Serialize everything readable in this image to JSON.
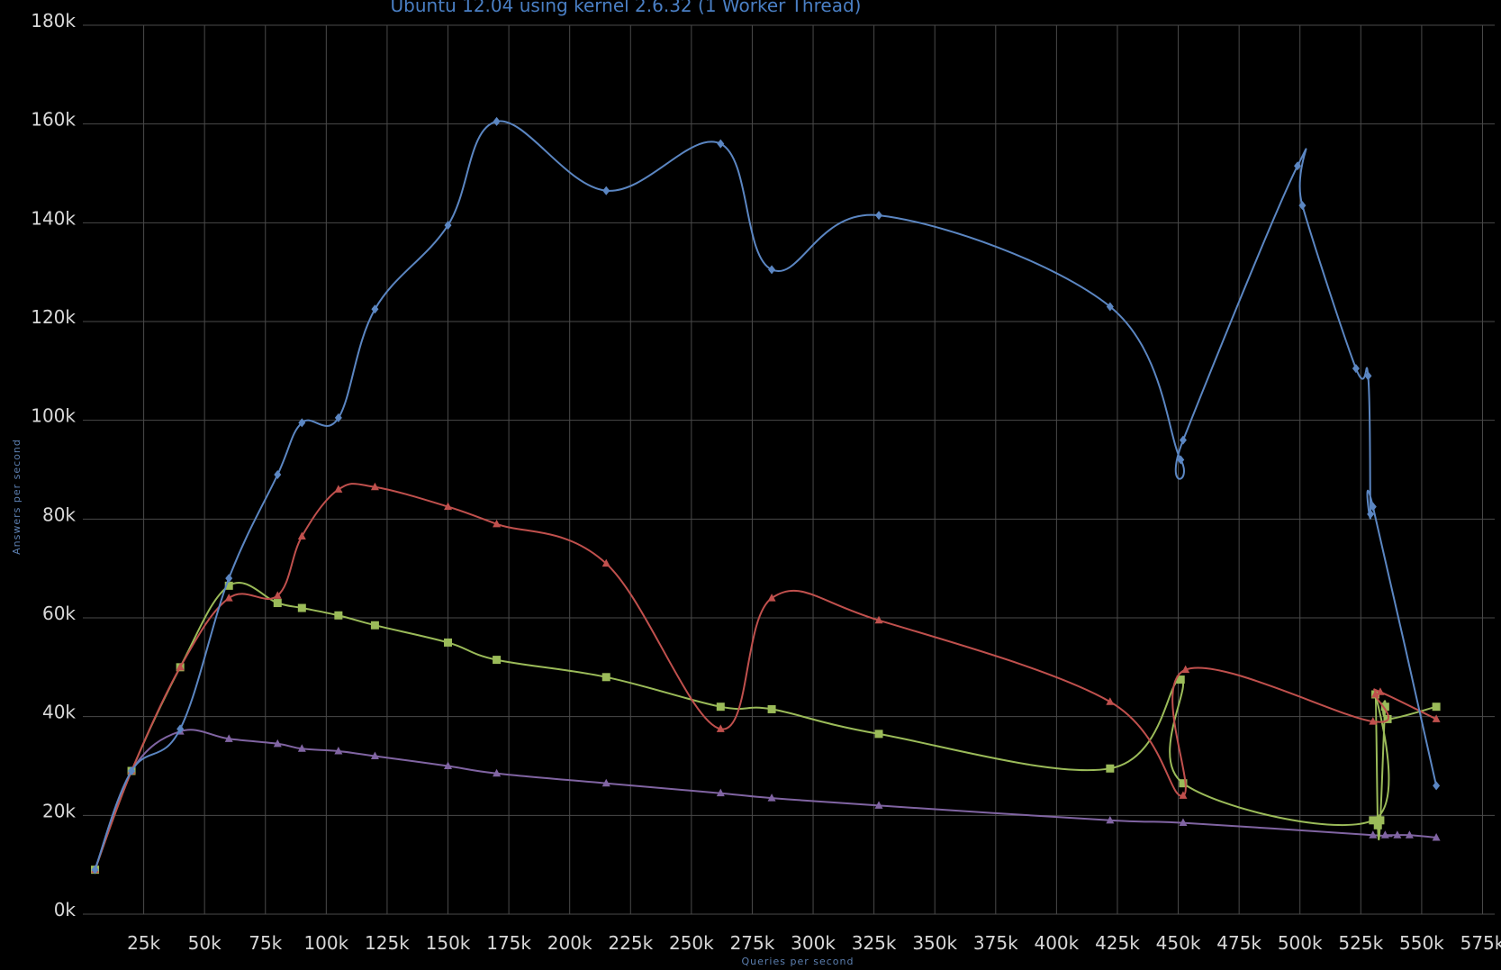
{
  "chart_data": {
    "type": "line",
    "title": "Ubuntu 12.04 using kernel 2.6.32 (1 Worker Thread)",
    "xlabel": "Queries per second",
    "ylabel": "Answers per second",
    "xlim": [
      0,
      580000
    ],
    "ylim": [
      0,
      180000
    ],
    "grid": true,
    "x_ticks": [
      25000,
      50000,
      75000,
      100000,
      125000,
      150000,
      175000,
      200000,
      225000,
      250000,
      275000,
      300000,
      325000,
      350000,
      375000,
      400000,
      425000,
      450000,
      475000,
      500000,
      525000,
      550000,
      575000
    ],
    "x_tick_labels": [
      "25k",
      "50k",
      "75k",
      "100k",
      "125k",
      "150k",
      "175k",
      "200k",
      "225k",
      "250k",
      "275k",
      "300k",
      "325k",
      "350k",
      "375k",
      "400k",
      "425k",
      "450k",
      "475k",
      "500k",
      "525k",
      "550k",
      "575k"
    ],
    "y_ticks": [
      0,
      20000,
      40000,
      60000,
      80000,
      100000,
      120000,
      140000,
      160000,
      180000
    ],
    "y_tick_labels": [
      "0k",
      "20k",
      "40k",
      "60k",
      "80k",
      "100k",
      "120k",
      "140k",
      "160k",
      "180k"
    ],
    "series": [
      {
        "color": "#5b86c2",
        "marker": "diamond",
        "points": [
          [
            5000,
            9000
          ],
          [
            20000,
            29000
          ],
          [
            40000,
            37500
          ],
          [
            60000,
            68000
          ],
          [
            80000,
            89000
          ],
          [
            90000,
            99500
          ],
          [
            105000,
            100500
          ],
          [
            120000,
            122500
          ],
          [
            150000,
            139500
          ],
          [
            170000,
            160500
          ],
          [
            215000,
            146500
          ],
          [
            262000,
            156000
          ],
          [
            283000,
            130500
          ],
          [
            327000,
            141500
          ],
          [
            422000,
            123000
          ],
          [
            451000,
            92000
          ],
          [
            452000,
            96000
          ],
          [
            499000,
            151500
          ],
          [
            501000,
            143500
          ],
          [
            523000,
            110500
          ],
          [
            528000,
            109000
          ],
          [
            529000,
            81000
          ],
          [
            530000,
            82500
          ],
          [
            556000,
            26000
          ]
        ]
      },
      {
        "color": "#c0504d",
        "marker": "triangle",
        "points": [
          [
            5000,
            9000
          ],
          [
            20000,
            29000
          ],
          [
            40000,
            50000
          ],
          [
            60000,
            64000
          ],
          [
            80000,
            64500
          ],
          [
            90000,
            76500
          ],
          [
            105000,
            86000
          ],
          [
            120000,
            86500
          ],
          [
            150000,
            82500
          ],
          [
            170000,
            79000
          ],
          [
            215000,
            71000
          ],
          [
            262000,
            37500
          ],
          [
            283000,
            64000
          ],
          [
            327000,
            59500
          ],
          [
            422000,
            43000
          ],
          [
            452000,
            24000
          ],
          [
            453000,
            49500
          ],
          [
            530000,
            39000
          ],
          [
            531000,
            44500
          ],
          [
            533000,
            45000
          ],
          [
            556000,
            39500
          ]
        ]
      },
      {
        "color": "#9bbb59",
        "marker": "square",
        "points": [
          [
            5000,
            9000
          ],
          [
            20000,
            29000
          ],
          [
            40000,
            50000
          ],
          [
            60000,
            66500
          ],
          [
            80000,
            63000
          ],
          [
            90000,
            62000
          ],
          [
            105000,
            60500
          ],
          [
            120000,
            58500
          ],
          [
            150000,
            55000
          ],
          [
            170000,
            51500
          ],
          [
            215000,
            48000
          ],
          [
            262000,
            42000
          ],
          [
            283000,
            41500
          ],
          [
            327000,
            36500
          ],
          [
            422000,
            29500
          ],
          [
            451000,
            47500
          ],
          [
            452000,
            26500
          ],
          [
            530000,
            19000
          ],
          [
            531000,
            44500
          ],
          [
            532000,
            18000
          ],
          [
            533000,
            19000
          ],
          [
            535000,
            42000
          ],
          [
            536000,
            39500
          ],
          [
            556000,
            42000
          ]
        ]
      },
      {
        "color": "#8064a2",
        "marker": "triangle",
        "points": [
          [
            5000,
            9000
          ],
          [
            20000,
            29000
          ],
          [
            40000,
            37000
          ],
          [
            60000,
            35500
          ],
          [
            80000,
            34500
          ],
          [
            90000,
            33500
          ],
          [
            105000,
            33000
          ],
          [
            120000,
            32000
          ],
          [
            150000,
            30000
          ],
          [
            170000,
            28500
          ],
          [
            215000,
            26500
          ],
          [
            262000,
            24500
          ],
          [
            283000,
            23500
          ],
          [
            327000,
            22000
          ],
          [
            422000,
            19000
          ],
          [
            452000,
            18500
          ],
          [
            530000,
            16000
          ],
          [
            535000,
            16000
          ],
          [
            540000,
            16000
          ],
          [
            545000,
            16000
          ],
          [
            556000,
            15500
          ]
        ]
      }
    ]
  }
}
